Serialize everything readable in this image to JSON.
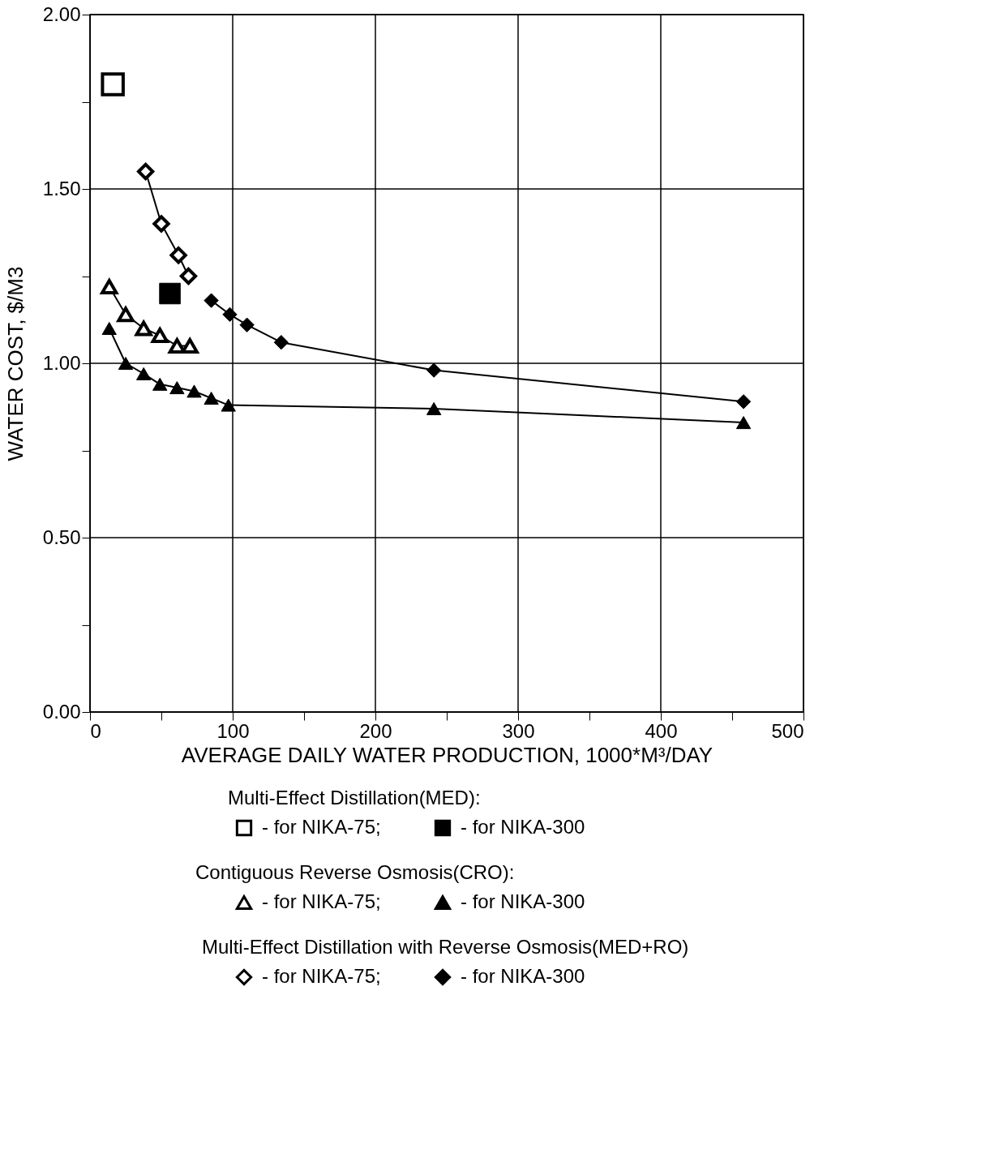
{
  "chart_data": {
    "type": "scatter",
    "xlabel": "AVERAGE DAILY WATER PRODUCTION, 1000*M³/DAY",
    "ylabel": "WATER COST, $/M3",
    "xlim": [
      0,
      500
    ],
    "ylim": [
      0,
      2
    ],
    "xticks": [
      0,
      {
        "value": 50,
        "label": null
      },
      100,
      {
        "value": 150,
        "label": null
      },
      200,
      {
        "value": 250,
        "label": null
      },
      300,
      {
        "value": 350,
        "label": null
      },
      400,
      {
        "value": 450,
        "label": null
      },
      500
    ],
    "yticks": [
      {
        "value": 0,
        "label": "0.00"
      },
      {
        "value": 0.25,
        "label": null
      },
      {
        "value": 0.5,
        "label": "0.50"
      },
      {
        "value": 0.75,
        "label": null
      },
      {
        "value": 1,
        "label": "1.00"
      },
      {
        "value": 1.25,
        "label": null
      },
      {
        "value": 1.5,
        "label": "1.50"
      },
      {
        "value": 1.75,
        "label": null
      },
      {
        "value": 2,
        "label": "2.00"
      }
    ],
    "grid": true,
    "legend": "bottom",
    "annotations": [
      "Multi-Effect Distillation(MED):",
      "Contiguous Reverse Osmosis(CRO):",
      "Multi-Effect Distillation with Reverse Osmosis(MED+RO)"
    ],
    "series": [
      {
        "name": "- for NIKA-75;",
        "marker": "square",
        "color": "#000000",
        "x": [
          16
        ],
        "values": [
          1.8
        ]
      },
      {
        "name": "- for NIKA-300",
        "marker": "square",
        "color": "#000000",
        "x": [
          56
        ],
        "values": [
          1.2
        ]
      },
      {
        "name": "- for NIKA-75;",
        "type": "line",
        "marker": "triangle",
        "color": "#000000",
        "x": [
          13.5,
          25,
          37.6,
          49,
          61,
          70
        ],
        "values": [
          1.22,
          1.14,
          1.1,
          1.08,
          1.05,
          1.05
        ]
      },
      {
        "name": "- for NIKA-300",
        "type": "line",
        "marker": "triangle",
        "color": "#000000",
        "x": [
          13.5,
          25,
          37.6,
          49,
          61,
          73,
          85,
          97,
          241,
          458
        ],
        "values": [
          1.1,
          1.0,
          0.97,
          0.94,
          0.93,
          0.92,
          0.9,
          0.88,
          0.87,
          0.83
        ]
      },
      {
        "name": "- for NIKA-75;",
        "type": "line",
        "marker": "diamond",
        "color": "#000000",
        "x": [
          39,
          50,
          62,
          69
        ],
        "values": [
          1.55,
          1.4,
          1.31,
          1.25
        ]
      },
      {
        "name": "- for NIKA-300",
        "type": "line",
        "marker": "diamond",
        "color": "#000000",
        "x": [
          85,
          98,
          110,
          134,
          241,
          458
        ],
        "values": [
          1.18,
          1.14,
          1.11,
          1.06,
          0.98,
          0.89
        ]
      }
    ]
  }
}
